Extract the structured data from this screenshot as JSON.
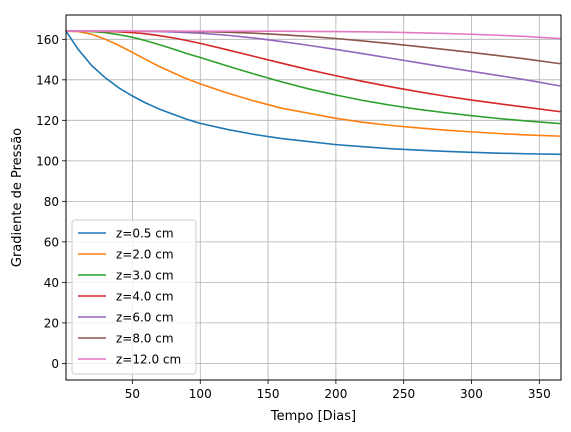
{
  "chart_data": {
    "type": "line",
    "title": "",
    "xlabel": "Tempo [Dias]",
    "ylabel": "Gradiente de Pressão",
    "xlim": [
      1,
      366
    ],
    "ylim": [
      -8.2,
      172
    ],
    "xticks": [
      50,
      100,
      150,
      200,
      250,
      300,
      350
    ],
    "yticks": [
      0,
      20,
      40,
      60,
      80,
      100,
      120,
      140,
      160
    ],
    "grid": true,
    "legend_position": "lower left",
    "x": [
      1,
      10,
      20,
      30,
      40,
      50,
      60,
      70,
      80,
      90,
      100,
      120,
      140,
      160,
      180,
      200,
      220,
      240,
      260,
      280,
      300,
      320,
      340,
      365
    ],
    "series": [
      {
        "name": "z=0.5 cm",
        "color": "#1f77b4",
        "values": [
          164.0,
          155.0,
          147.0,
          141.0,
          136.0,
          132.0,
          128.5,
          125.5,
          123.0,
          120.5,
          118.5,
          115.5,
          113.0,
          111.0,
          109.5,
          108.0,
          107.0,
          106.0,
          105.3,
          104.7,
          104.2,
          103.8,
          103.5,
          103.2
        ]
      },
      {
        "name": "z=2.0 cm",
        "color": "#ff7f0e",
        "values": [
          164.0,
          163.8,
          162.5,
          160.0,
          157.0,
          153.5,
          150.0,
          146.5,
          143.5,
          140.5,
          138.0,
          133.5,
          129.5,
          126.0,
          123.5,
          121.0,
          119.0,
          117.5,
          116.3,
          115.2,
          114.3,
          113.5,
          112.8,
          112.2
        ]
      },
      {
        "name": "z=3.0 cm",
        "color": "#2ca02c",
        "values": [
          164.0,
          164.0,
          163.8,
          163.3,
          162.3,
          161.0,
          159.3,
          157.3,
          155.2,
          153.0,
          151.0,
          146.8,
          142.8,
          139.0,
          135.5,
          132.5,
          129.8,
          127.5,
          125.5,
          123.8,
          122.3,
          120.9,
          119.7,
          118.4
        ]
      },
      {
        "name": "z=4.0 cm",
        "color": "#d62728",
        "values": [
          164.0,
          164.0,
          164.0,
          163.9,
          163.7,
          163.3,
          162.7,
          161.8,
          160.7,
          159.4,
          158.0,
          154.8,
          151.5,
          148.2,
          145.0,
          142.0,
          139.2,
          136.6,
          134.2,
          132.0,
          130.0,
          128.2,
          126.5,
          124.3
        ]
      },
      {
        "name": "z=6.0 cm",
        "color": "#9467bd",
        "values": [
          164.0,
          164.0,
          164.0,
          164.0,
          164.0,
          164.0,
          163.9,
          163.8,
          163.6,
          163.3,
          163.0,
          162.0,
          160.6,
          158.9,
          157.0,
          155.0,
          152.9,
          150.7,
          148.5,
          146.3,
          144.2,
          142.1,
          140.0,
          137.0
        ]
      },
      {
        "name": "z=8.0 cm",
        "color": "#8c564b",
        "values": [
          164.0,
          164.0,
          164.0,
          164.0,
          164.0,
          164.0,
          164.0,
          164.0,
          164.0,
          163.9,
          163.8,
          163.5,
          163.0,
          162.3,
          161.4,
          160.4,
          159.2,
          157.9,
          156.5,
          155.0,
          153.5,
          151.9,
          150.3,
          148.0
        ]
      },
      {
        "name": "z=12.0 cm",
        "color": "#e377c2",
        "values": [
          164.0,
          164.0,
          164.0,
          164.0,
          164.0,
          164.0,
          164.0,
          164.0,
          164.0,
          164.0,
          164.0,
          164.0,
          164.0,
          164.0,
          163.9,
          163.8,
          163.7,
          163.5,
          163.2,
          162.9,
          162.5,
          162.0,
          161.4,
          160.4
        ]
      }
    ]
  }
}
